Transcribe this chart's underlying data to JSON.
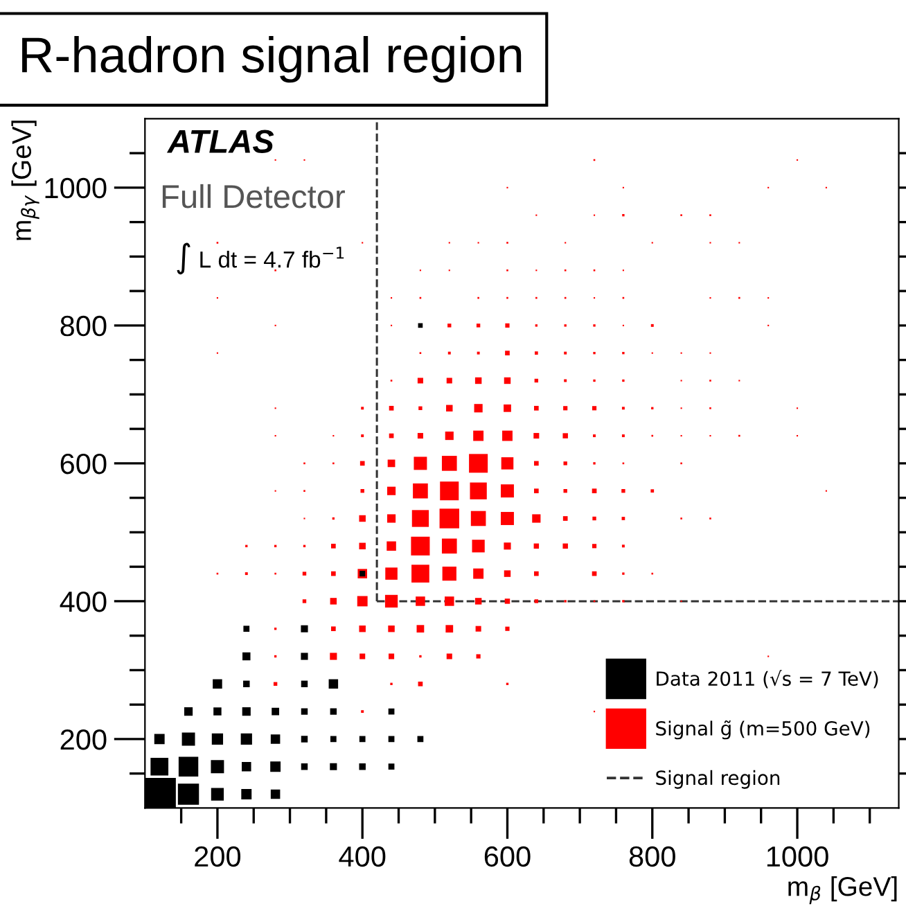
{
  "chart_data": {
    "type": "bubble",
    "title": "R-hadron signal region",
    "xlabel": "m$_{β}$ [GeV]",
    "ylabel": "m$_{βγ}$ [GeV]",
    "annotations": [
      "ATLAS",
      "Full Detector",
      "∫ L dt = 4.7 fb$^{−1}$"
    ],
    "marker": "square",
    "grid": false,
    "legend": "bottom right",
    "xlim": [
      100,
      1140
    ],
    "ylim": [
      100,
      1100
    ],
    "xticks": [
      {
        "value": 150,
        "label": null
      },
      200,
      {
        "value": 250,
        "label": null
      },
      {
        "value": 300,
        "label": null
      },
      {
        "value": 350,
        "label": null
      },
      400,
      {
        "value": 450,
        "label": null
      },
      {
        "value": 500,
        "label": null
      },
      {
        "value": 550,
        "label": null
      },
      600,
      {
        "value": 650,
        "label": null
      },
      {
        "value": 700,
        "label": null
      },
      {
        "value": 750,
        "label": null
      },
      800,
      {
        "value": 850,
        "label": null
      },
      {
        "value": 900,
        "label": null
      },
      {
        "value": 950,
        "label": null
      },
      1000,
      {
        "value": 1050,
        "label": null
      },
      {
        "value": 1100,
        "label": null
      }
    ],
    "yticks": [
      {
        "value": 150,
        "label": null
      },
      200,
      {
        "value": 250,
        "label": null
      },
      {
        "value": 300,
        "label": null
      },
      {
        "value": 350,
        "label": null
      },
      400,
      {
        "value": 450,
        "label": null
      },
      {
        "value": 500,
        "label": null
      },
      {
        "value": 550,
        "label": null
      },
      600,
      {
        "value": 650,
        "label": null
      },
      {
        "value": 700,
        "label": null
      },
      {
        "value": 750,
        "label": null
      },
      800,
      {
        "value": 850,
        "label": null
      },
      {
        "value": 900,
        "label": null
      },
      {
        "value": 950,
        "label": null
      },
      1000,
      {
        "value": 1050,
        "label": null
      }
    ],
    "ref_lines": [
      {
        "axis": "x",
        "value": 420,
        "label": "Signal region",
        "color": "#333333",
        "line_style": "dashed"
      },
      {
        "axis": "y",
        "value": 400,
        "color": "#333333",
        "line_style": "dashed"
      }
    ],
    "series": [
      {
        "name": "Signal g̃ (m=500 GeV)",
        "color": "#ff0000",
        "x": [
          400,
          720,
          280,
          440,
          480,
          600,
          280,
          360,
          400,
          440,
          480,
          520,
          560,
          960,
          280,
          360,
          400,
          440,
          480,
          520,
          560,
          600,
          320,
          360,
          400,
          440,
          480,
          520,
          560,
          600,
          640,
          680,
          720,
          760,
          840,
          200,
          240,
          280,
          320,
          360,
          400,
          440,
          480,
          520,
          560,
          600,
          640,
          720,
          760,
          800,
          240,
          280,
          320,
          360,
          400,
          440,
          480,
          520,
          560,
          600,
          640,
          680,
          720,
          760,
          320,
          360,
          400,
          440,
          480,
          520,
          560,
          600,
          640,
          680,
          720,
          760,
          840,
          880,
          280,
          320,
          400,
          440,
          480,
          520,
          560,
          600,
          640,
          680,
          720,
          760,
          800,
          1040,
          320,
          360,
          400,
          440,
          480,
          520,
          560,
          600,
          640,
          680,
          720,
          760,
          840,
          280,
          360,
          400,
          440,
          480,
          520,
          560,
          600,
          640,
          680,
          720,
          760,
          800,
          840,
          880,
          920,
          1000,
          280,
          400,
          440,
          480,
          520,
          560,
          600,
          640,
          680,
          720,
          760,
          800,
          840,
          880,
          1000,
          440,
          480,
          520,
          560,
          600,
          640,
          680,
          720,
          760,
          840,
          880,
          920,
          200,
          480,
          520,
          560,
          600,
          640,
          680,
          720,
          760,
          800,
          840,
          880,
          280,
          440,
          520,
          560,
          600,
          640,
          680,
          720,
          760,
          800,
          960,
          200,
          440,
          480,
          560,
          600,
          640,
          680,
          720,
          760,
          880,
          920,
          960,
          280,
          480,
          520,
          600,
          640,
          680,
          720,
          760,
          200,
          400,
          520,
          560,
          600,
          680,
          800,
          880,
          920,
          640,
          720,
          760,
          840,
          880,
          600,
          760,
          960,
          1040,
          280,
          320,
          720,
          1000
        ],
        "values": [
          240,
          240,
          280,
          280,
          280,
          280,
          320,
          320,
          320,
          320,
          320,
          320,
          320,
          320,
          360,
          360,
          360,
          360,
          360,
          360,
          360,
          360,
          400,
          400,
          400,
          400,
          400,
          400,
          400,
          400,
          400,
          400,
          400,
          400,
          400,
          440,
          440,
          440,
          440,
          440,
          440,
          440,
          440,
          440,
          440,
          440,
          440,
          440,
          440,
          440,
          480,
          480,
          480,
          480,
          480,
          480,
          480,
          480,
          480,
          480,
          480,
          480,
          480,
          480,
          520,
          520,
          520,
          520,
          520,
          520,
          520,
          520,
          520,
          520,
          520,
          520,
          520,
          520,
          560,
          560,
          560,
          560,
          560,
          560,
          560,
          560,
          560,
          560,
          560,
          560,
          560,
          560,
          600,
          600,
          600,
          600,
          600,
          600,
          600,
          600,
          600,
          600,
          600,
          600,
          600,
          640,
          640,
          640,
          640,
          640,
          640,
          640,
          640,
          640,
          640,
          640,
          640,
          640,
          640,
          640,
          640,
          640,
          680,
          680,
          680,
          680,
          680,
          680,
          680,
          680,
          680,
          680,
          680,
          680,
          680,
          680,
          680,
          720,
          720,
          720,
          720,
          720,
          720,
          720,
          720,
          720,
          720,
          720,
          720,
          760,
          760,
          760,
          760,
          760,
          760,
          760,
          760,
          760,
          760,
          760,
          760,
          800,
          800,
          800,
          800,
          800,
          800,
          800,
          800,
          800,
          800,
          800,
          840,
          840,
          840,
          840,
          840,
          840,
          840,
          840,
          840,
          840,
          840,
          840,
          880,
          880,
          880,
          880,
          880,
          880,
          880,
          880,
          920,
          920,
          920,
          920,
          920,
          920,
          920,
          920,
          920,
          960,
          960,
          960,
          960,
          960,
          1000,
          1000,
          1000,
          1000,
          1040,
          1040,
          1040,
          1040
        ],
        "sizes": [
          0.007,
          0.002,
          0.013,
          0.005,
          0.02,
          0.005,
          0.005,
          0.046,
          0.029,
          0.029,
          0.005,
          0.029,
          0.017,
          0.002,
          0.005,
          0.02,
          0.04,
          0.04,
          0.052,
          0.052,
          0.029,
          0.017,
          0.013,
          0.04,
          0.099,
          0.149,
          0.082,
          0.082,
          0.04,
          0.025,
          0.013,
          0.005,
          0.003,
          0.005,
          0.002,
          0.003,
          0.007,
          0.003,
          0.013,
          0.02,
          0.082,
          0.138,
          0.295,
          0.184,
          0.099,
          0.04,
          0.02,
          0.02,
          0.005,
          0.003,
          0.005,
          0.005,
          0.005,
          0.02,
          0.04,
          0.082,
          0.327,
          0.209,
          0.149,
          0.046,
          0.025,
          0.025,
          0.017,
          0.007,
          0.002,
          0.005,
          0.04,
          0.066,
          0.264,
          0.36,
          0.209,
          0.16,
          0.066,
          0.02,
          0.013,
          0.01,
          0.003,
          0.003,
          0.002,
          0.003,
          0.013,
          0.066,
          0.209,
          0.327,
          0.264,
          0.16,
          0.02,
          0.013,
          0.02,
          0.013,
          0.01,
          0.002,
          0.003,
          0.003,
          0.02,
          0.052,
          0.16,
          0.209,
          0.327,
          0.138,
          0.02,
          0.013,
          0.005,
          0.003,
          0.003,
          0.002,
          0.002,
          0.007,
          0.02,
          0.029,
          0.066,
          0.099,
          0.099,
          0.029,
          0.025,
          0.007,
          0.007,
          0.003,
          0.002,
          0.002,
          0.003,
          0.002,
          0.002,
          0.007,
          0.02,
          0.013,
          0.04,
          0.066,
          0.052,
          0.02,
          0.017,
          0.017,
          0.007,
          0.005,
          0.002,
          0.003,
          0.002,
          0.003,
          0.029,
          0.029,
          0.04,
          0.04,
          0.013,
          0.007,
          0.005,
          0.005,
          0.002,
          0.003,
          0.002,
          0.002,
          0.003,
          0.007,
          0.007,
          0.02,
          0.01,
          0.007,
          0.005,
          0.005,
          0.002,
          0.002,
          0.002,
          0.002,
          0.002,
          0.013,
          0.013,
          0.017,
          0.005,
          0.005,
          0.005,
          0.002,
          0.007,
          0.002,
          0.002,
          0.002,
          0.003,
          0.003,
          0.003,
          0.003,
          0.003,
          0.002,
          0.003,
          0.002,
          0.003,
          0.002,
          0.003,
          0.002,
          0.002,
          0.003,
          0.002,
          0.003,
          0.003,
          0.002,
          0.003,
          0.002,
          0.002,
          0.002,
          0.003,
          0.002,
          0.002,
          0.002,
          0.002,
          0.002,
          0.002,
          0.005,
          0.003,
          0.003,
          0.002,
          0.002,
          0.002,
          0.002,
          0.002,
          0.002,
          0.003,
          0.002
        ]
      },
      {
        "name": "Data 2011 (√s = 7 TeV)",
        "color": "#000000",
        "x": [
          120,
          160,
          200,
          240,
          280,
          120,
          160,
          200,
          240,
          280,
          320,
          360,
          400,
          440,
          120,
          160,
          200,
          240,
          280,
          320,
          360,
          400,
          440,
          480,
          160,
          200,
          240,
          280,
          320,
          360,
          440,
          200,
          240,
          320,
          360,
          240,
          320,
          240,
          320,
          400,
          480
        ],
        "values": [
          120,
          120,
          120,
          120,
          120,
          160,
          160,
          160,
          160,
          160,
          160,
          160,
          160,
          160,
          200,
          200,
          200,
          200,
          200,
          200,
          200,
          200,
          200,
          200,
          240,
          240,
          240,
          240,
          240,
          240,
          240,
          280,
          280,
          280,
          280,
          320,
          320,
          360,
          360,
          440,
          800
        ],
        "sizes": [
          1,
          0.413,
          0.149,
          0.099,
          0.082,
          0.295,
          0.36,
          0.16,
          0.082,
          0.099,
          0.04,
          0.046,
          0.04,
          0.034,
          0.099,
          0.16,
          0.118,
          0.118,
          0.082,
          0.04,
          0.034,
          0.034,
          0.034,
          0.034,
          0.066,
          0.059,
          0.066,
          0.052,
          0.04,
          0.04,
          0.034,
          0.082,
          0.04,
          0.04,
          0.082,
          0.059,
          0.046,
          0.034,
          0.046,
          0.029,
          0.02
        ]
      }
    ]
  }
}
